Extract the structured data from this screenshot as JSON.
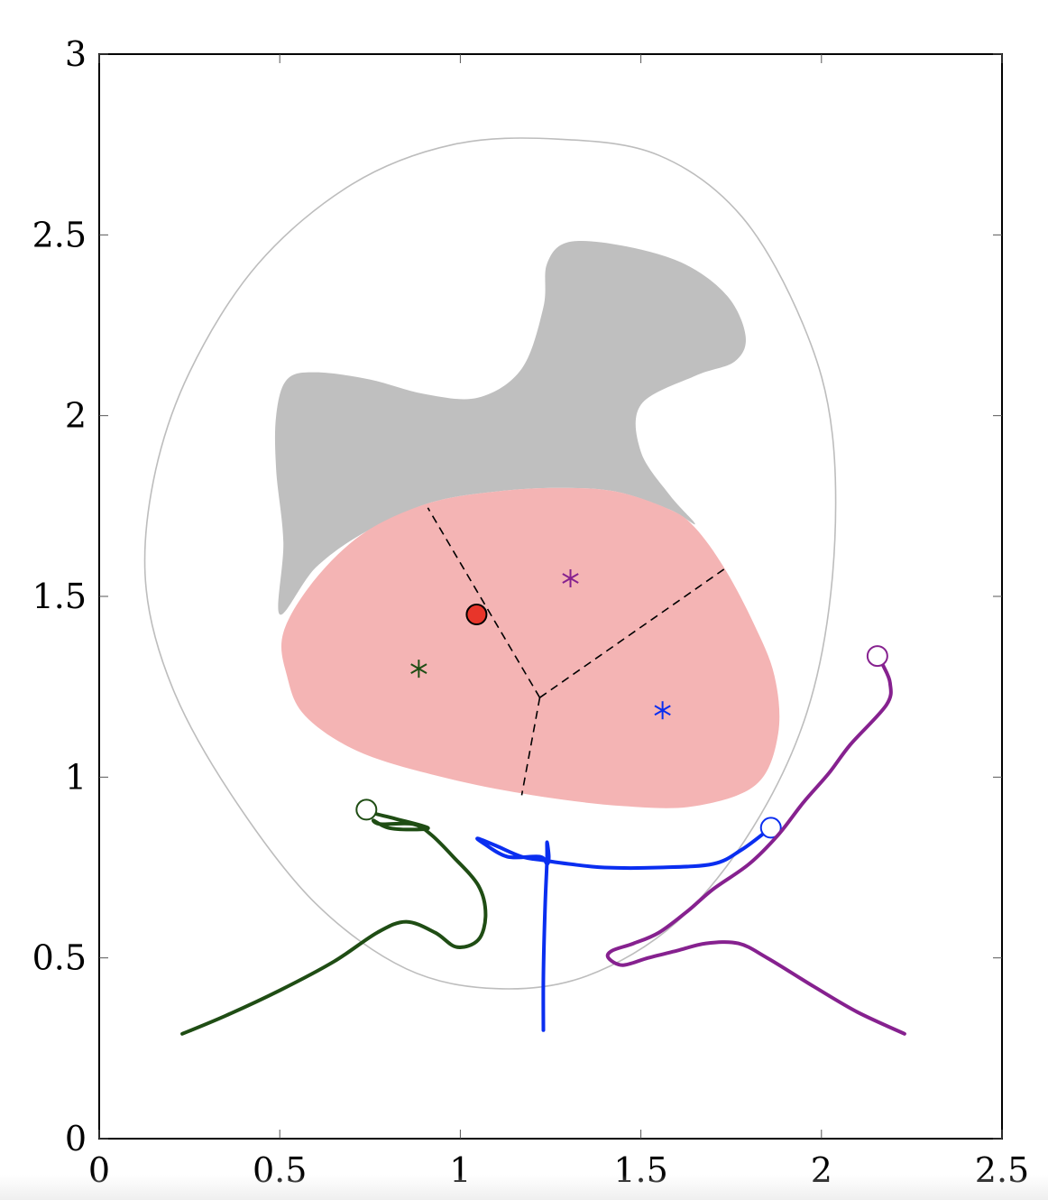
{
  "chart_data": {
    "type": "line",
    "xlim": [
      0,
      2.5
    ],
    "ylim": [
      0,
      3
    ],
    "x_ticks": [
      0,
      0.5,
      1,
      1.5,
      2,
      2.5
    ],
    "x_tick_labels": [
      "0",
      "0.5",
      "1",
      "1.5",
      "2",
      "2.5"
    ],
    "y_ticks": [
      0,
      0.5,
      1,
      1.5,
      2,
      2.5,
      3
    ],
    "y_tick_labels": [
      "0",
      "0.5",
      "1",
      "1.5",
      "2",
      "2.5",
      "3"
    ],
    "grid": false,
    "colors": {
      "obstacle": "#bfbfbf",
      "region": "#f4b4b4",
      "boundary": "#bdbdbd",
      "green": "#1f4d14",
      "blue": "#0a2ef0",
      "purple": "#86218f",
      "target": "#e8352a"
    },
    "boundary_ellipse": [
      [
        1.27,
        2.765
      ],
      [
        1.55,
        2.72
      ],
      [
        1.78,
        2.55
      ],
      [
        1.95,
        2.25
      ],
      [
        2.03,
        1.95
      ],
      [
        2.03,
        1.55
      ],
      [
        1.96,
        1.18
      ],
      [
        1.81,
        0.86
      ],
      [
        1.6,
        0.6
      ],
      [
        1.35,
        0.45
      ],
      [
        1.1,
        0.415
      ],
      [
        0.85,
        0.47
      ],
      [
        0.6,
        0.65
      ],
      [
        0.38,
        0.93
      ],
      [
        0.21,
        1.23
      ],
      [
        0.13,
        1.52
      ],
      [
        0.15,
        1.82
      ],
      [
        0.25,
        2.12
      ],
      [
        0.44,
        2.42
      ],
      [
        0.7,
        2.64
      ],
      [
        0.98,
        2.75
      ],
      [
        1.27,
        2.765
      ]
    ],
    "obstacle": [
      [
        0.52,
        2.1
      ],
      [
        0.6,
        2.12
      ],
      [
        0.75,
        2.1
      ],
      [
        0.9,
        2.06
      ],
      [
        1.05,
        2.05
      ],
      [
        1.17,
        2.13
      ],
      [
        1.23,
        2.3
      ],
      [
        1.24,
        2.42
      ],
      [
        1.3,
        2.48
      ],
      [
        1.45,
        2.47
      ],
      [
        1.62,
        2.42
      ],
      [
        1.74,
        2.33
      ],
      [
        1.79,
        2.22
      ],
      [
        1.76,
        2.15
      ],
      [
        1.65,
        2.11
      ],
      [
        1.5,
        2.03
      ],
      [
        1.5,
        1.9
      ],
      [
        1.58,
        1.78
      ],
      [
        1.65,
        1.7
      ],
      [
        1.58,
        1.74
      ],
      [
        1.43,
        1.79
      ],
      [
        1.27,
        1.8
      ],
      [
        1.1,
        1.79
      ],
      [
        0.92,
        1.76
      ],
      [
        0.74,
        1.68
      ],
      [
        0.6,
        1.58
      ],
      [
        0.5,
        1.45
      ],
      [
        0.51,
        1.65
      ],
      [
        0.49,
        1.85
      ],
      [
        0.49,
        2.0
      ],
      [
        0.52,
        2.1
      ]
    ],
    "region": [
      [
        0.51,
        1.4
      ],
      [
        0.6,
        1.55
      ],
      [
        0.74,
        1.68
      ],
      [
        0.92,
        1.76
      ],
      [
        1.1,
        1.79
      ],
      [
        1.27,
        1.8
      ],
      [
        1.43,
        1.79
      ],
      [
        1.58,
        1.74
      ],
      [
        1.65,
        1.69
      ],
      [
        1.73,
        1.58
      ],
      [
        1.81,
        1.43
      ],
      [
        1.87,
        1.28
      ],
      [
        1.88,
        1.12
      ],
      [
        1.82,
        0.98
      ],
      [
        1.65,
        0.92
      ],
      [
        1.45,
        0.92
      ],
      [
        1.2,
        0.95
      ],
      [
        0.95,
        1.0
      ],
      [
        0.72,
        1.07
      ],
      [
        0.57,
        1.17
      ],
      [
        0.52,
        1.28
      ],
      [
        0.51,
        1.4
      ]
    ],
    "voronoi_edges": [
      [
        [
          1.22,
          1.22
        ],
        [
          0.91,
          1.745
        ]
      ],
      [
        [
          1.22,
          1.22
        ],
        [
          1.73,
          1.575
        ]
      ],
      [
        [
          1.22,
          1.22
        ],
        [
          1.17,
          0.95
        ]
      ]
    ],
    "markers": {
      "target": {
        "x": 1.045,
        "y": 1.45
      },
      "stars": [
        {
          "x": 0.885,
          "y": 1.3,
          "color": "#1f4d14"
        },
        {
          "x": 1.305,
          "y": 1.55,
          "color": "#86218f"
        },
        {
          "x": 1.56,
          "y": 1.185,
          "color": "#0a2ef0"
        }
      ]
    },
    "series": [
      {
        "color": "#1f4d14",
        "start": {
          "x": 0.74,
          "y": 0.91
        },
        "points": [
          [
            0.23,
            0.29
          ],
          [
            0.35,
            0.34
          ],
          [
            0.5,
            0.41
          ],
          [
            0.65,
            0.49
          ],
          [
            0.77,
            0.57
          ],
          [
            0.85,
            0.6
          ],
          [
            0.93,
            0.57
          ],
          [
            0.99,
            0.53
          ],
          [
            1.05,
            0.55
          ],
          [
            1.07,
            0.62
          ],
          [
            1.05,
            0.7
          ],
          [
            0.98,
            0.78
          ],
          [
            0.92,
            0.84
          ],
          [
            0.87,
            0.87
          ],
          [
            0.78,
            0.87
          ],
          [
            0.76,
            0.88
          ],
          [
            0.8,
            0.86
          ],
          [
            0.86,
            0.855
          ],
          [
            0.91,
            0.86
          ],
          [
            0.82,
            0.885
          ],
          [
            0.76,
            0.9
          ],
          [
            0.74,
            0.91
          ]
        ]
      },
      {
        "color": "#0a2ef0",
        "start": {
          "x": 1.86,
          "y": 0.86
        },
        "points": [
          [
            1.23,
            0.3
          ],
          [
            1.23,
            0.45
          ],
          [
            1.235,
            0.65
          ],
          [
            1.24,
            0.77
          ],
          [
            1.24,
            0.82
          ],
          [
            1.245,
            0.78
          ],
          [
            1.24,
            0.76
          ],
          [
            1.22,
            0.78
          ],
          [
            1.13,
            0.78
          ],
          [
            1.06,
            0.82
          ],
          [
            1.05,
            0.83
          ],
          [
            1.1,
            0.81
          ],
          [
            1.17,
            0.78
          ],
          [
            1.23,
            0.77
          ],
          [
            1.3,
            0.76
          ],
          [
            1.4,
            0.75
          ],
          [
            1.55,
            0.75
          ],
          [
            1.7,
            0.76
          ],
          [
            1.78,
            0.8
          ],
          [
            1.86,
            0.86
          ]
        ]
      },
      {
        "color": "#86218f",
        "start": {
          "x": 2.155,
          "y": 1.335
        },
        "points": [
          [
            2.23,
            0.29
          ],
          [
            2.1,
            0.35
          ],
          [
            1.98,
            0.42
          ],
          [
            1.85,
            0.5
          ],
          [
            1.77,
            0.54
          ],
          [
            1.68,
            0.54
          ],
          [
            1.6,
            0.52
          ],
          [
            1.52,
            0.5
          ],
          [
            1.45,
            0.48
          ],
          [
            1.41,
            0.5
          ],
          [
            1.42,
            0.52
          ],
          [
            1.48,
            0.54
          ],
          [
            1.55,
            0.57
          ],
          [
            1.63,
            0.63
          ],
          [
            1.7,
            0.69
          ],
          [
            1.8,
            0.76
          ],
          [
            1.88,
            0.84
          ],
          [
            1.95,
            0.93
          ],
          [
            2.02,
            1.01
          ],
          [
            2.08,
            1.09
          ],
          [
            2.18,
            1.2
          ],
          [
            2.19,
            1.26
          ],
          [
            2.17,
            1.31
          ],
          [
            2.155,
            1.335
          ]
        ]
      }
    ]
  }
}
